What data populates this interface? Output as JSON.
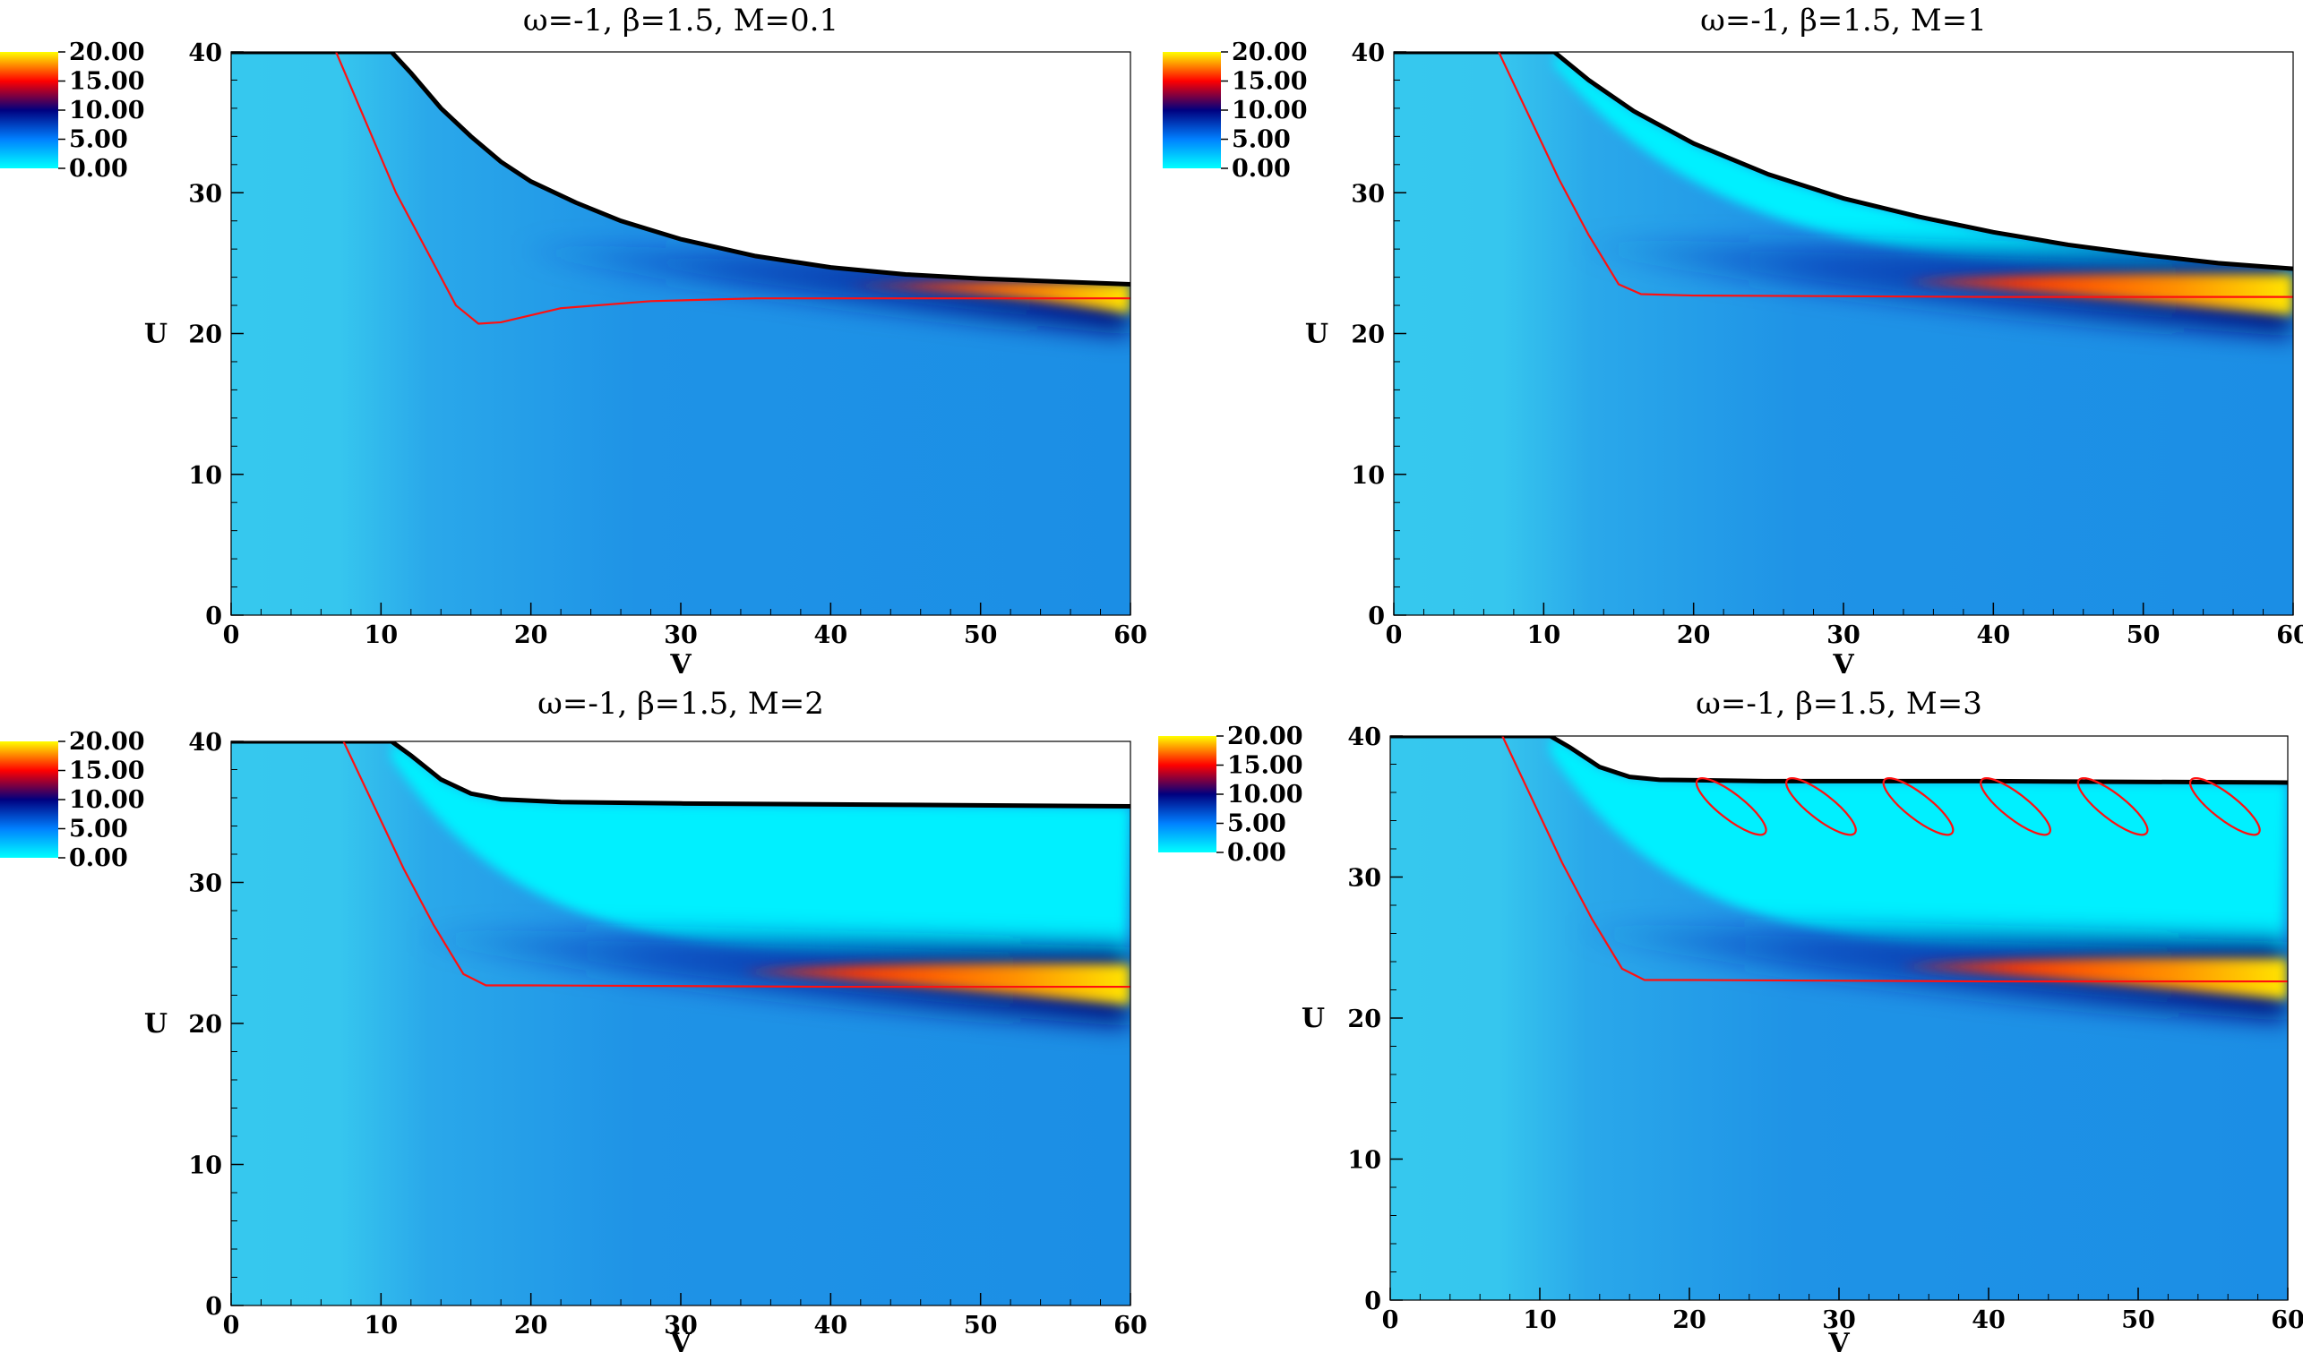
{
  "figure": "2x2 panel of contour plots over the V-U plane",
  "colorbar": {
    "ticks": [
      "20.00",
      "15.00",
      "10.00",
      "5.00",
      "0.00"
    ],
    "colors": [
      "#00ffff",
      "#0080ff",
      "#00007f",
      "#ff0000",
      "#ffff00"
    ]
  },
  "chart_data": [
    {
      "type": "heatmap",
      "title": "ω=-1, β=1.5, M=0.1",
      "xlabel": "V",
      "ylabel": "U",
      "xlim": [
        0,
        60
      ],
      "ylim": [
        0,
        40
      ],
      "xticks": [
        "0",
        "10",
        "20",
        "30",
        "40",
        "50",
        "60"
      ],
      "yticks": [
        "0",
        "10",
        "20",
        "30",
        "40"
      ],
      "boundary": [
        [
          0,
          40
        ],
        [
          10.7,
          40
        ],
        [
          12,
          38.5
        ],
        [
          14,
          36
        ],
        [
          16,
          34
        ],
        [
          18,
          32.2
        ],
        [
          20,
          30.8
        ],
        [
          23,
          29.3
        ],
        [
          26,
          28
        ],
        [
          30,
          26.7
        ],
        [
          35,
          25.5
        ],
        [
          40,
          24.7
        ],
        [
          45,
          24.2
        ],
        [
          50,
          23.9
        ],
        [
          55,
          23.7
        ],
        [
          60,
          23.5
        ]
      ],
      "red_contour": [
        [
          7,
          40
        ],
        [
          9,
          35
        ],
        [
          11,
          30
        ],
        [
          13,
          26
        ],
        [
          15,
          22
        ],
        [
          16.5,
          20.7
        ],
        [
          18,
          20.8
        ],
        [
          22,
          21.8
        ],
        [
          28,
          22.3
        ],
        [
          35,
          22.5
        ],
        [
          45,
          22.5
        ],
        [
          60,
          22.5
        ]
      ],
      "hot_region": {
        "v_start": 41,
        "u_low": 21.4,
        "u_high": 23.6
      }
    },
    {
      "type": "heatmap",
      "title": "ω=-1, β=1.5, M=1",
      "xlabel": "V",
      "ylabel": "U",
      "xlim": [
        0,
        60
      ],
      "ylim": [
        0,
        40
      ],
      "xticks": [
        "0",
        "10",
        "20",
        "30",
        "40",
        "50",
        "60"
      ],
      "yticks": [
        "0",
        "10",
        "20",
        "30",
        "40"
      ],
      "boundary": [
        [
          0,
          40
        ],
        [
          10.7,
          40
        ],
        [
          13,
          38
        ],
        [
          16,
          35.8
        ],
        [
          20,
          33.5
        ],
        [
          25,
          31.3
        ],
        [
          30,
          29.6
        ],
        [
          35,
          28.3
        ],
        [
          40,
          27.2
        ],
        [
          45,
          26.3
        ],
        [
          50,
          25.6
        ],
        [
          55,
          25
        ],
        [
          60,
          24.6
        ]
      ],
      "red_contour": [
        [
          7,
          40
        ],
        [
          9,
          35.5
        ],
        [
          11,
          31
        ],
        [
          13,
          27
        ],
        [
          15,
          23.5
        ],
        [
          16.5,
          22.8
        ],
        [
          20,
          22.7
        ],
        [
          40,
          22.6
        ],
        [
          60,
          22.6
        ]
      ],
      "hot_region": {
        "v_start": 34,
        "u_low": 21.3,
        "u_high": 24.2
      }
    },
    {
      "type": "heatmap",
      "title": "ω=-1, β=1.5, M=2",
      "xlabel": "V",
      "ylabel": "U",
      "xlim": [
        0,
        60
      ],
      "ylim": [
        0,
        40
      ],
      "xticks": [
        "0",
        "10",
        "20",
        "30",
        "40",
        "50",
        "60"
      ],
      "yticks": [
        "0",
        "10",
        "20",
        "30",
        "40"
      ],
      "boundary": [
        [
          0,
          40
        ],
        [
          10.7,
          40
        ],
        [
          12,
          39
        ],
        [
          14,
          37.3
        ],
        [
          16,
          36.3
        ],
        [
          18,
          35.9
        ],
        [
          22,
          35.7
        ],
        [
          30,
          35.6
        ],
        [
          45,
          35.5
        ],
        [
          60,
          35.4
        ]
      ],
      "red_contour": [
        [
          7.5,
          40
        ],
        [
          9.5,
          35.5
        ],
        [
          11.5,
          31
        ],
        [
          13.5,
          27
        ],
        [
          15.5,
          23.5
        ],
        [
          17,
          22.7
        ],
        [
          20,
          22.7
        ],
        [
          40,
          22.6
        ],
        [
          60,
          22.6
        ]
      ],
      "hot_region": {
        "v_start": 34,
        "u_low": 21.3,
        "u_high": 24.2
      }
    },
    {
      "type": "heatmap",
      "title": "ω=-1, β=1.5, M=3",
      "xlabel": "V",
      "ylabel": "U",
      "xlim": [
        0,
        60
      ],
      "ylim": [
        0,
        40
      ],
      "xticks": [
        "0",
        "10",
        "20",
        "30",
        "40",
        "50",
        "60"
      ],
      "yticks": [
        "0",
        "10",
        "20",
        "30",
        "40"
      ],
      "boundary": [
        [
          0,
          40
        ],
        [
          10.7,
          40
        ],
        [
          12,
          39.2
        ],
        [
          14,
          37.8
        ],
        [
          16,
          37.1
        ],
        [
          18,
          36.9
        ],
        [
          25,
          36.8
        ],
        [
          40,
          36.8
        ],
        [
          60,
          36.7
        ]
      ],
      "red_contour": [
        [
          7.5,
          40
        ],
        [
          9.5,
          35.5
        ],
        [
          11.5,
          31
        ],
        [
          13.5,
          27
        ],
        [
          15.5,
          23.5
        ],
        [
          17,
          22.7
        ],
        [
          20,
          22.7
        ],
        [
          40,
          22.6
        ],
        [
          60,
          22.6
        ]
      ],
      "hot_region": {
        "v_start": 34,
        "u_low": 21.3,
        "u_high": 24.2
      },
      "loops_v": [
        21,
        27,
        33.5,
        40,
        46.5,
        54
      ]
    }
  ]
}
